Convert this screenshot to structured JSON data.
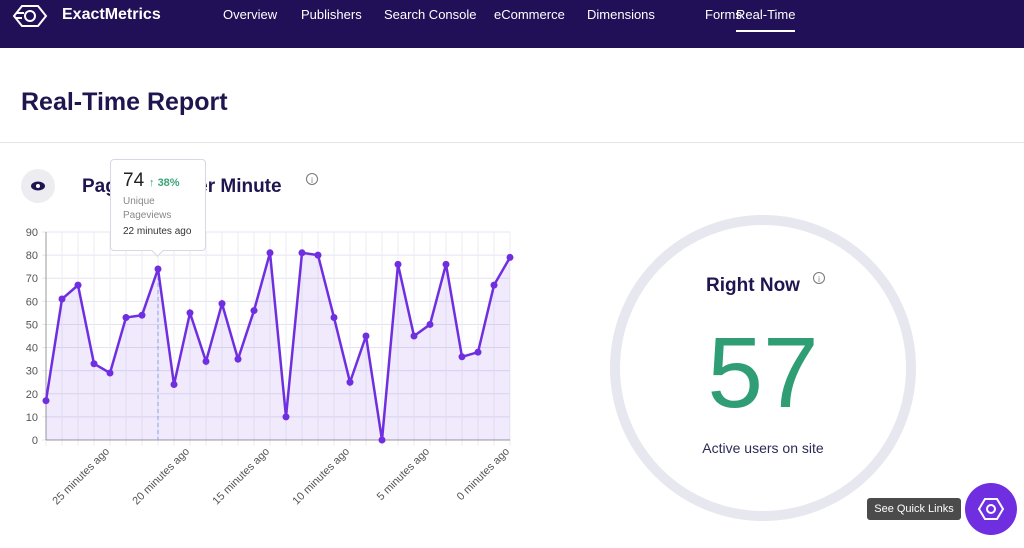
{
  "header": {
    "logo": "ExactMetrics",
    "nav": [
      "Overview",
      "Publishers",
      "Search Console",
      "eCommerce",
      "Dimensions",
      "Forms",
      "Real-Time"
    ]
  },
  "page_title": "Real-Time Report",
  "chart_data": {
    "type": "line",
    "title": "Pageviews Per Minute",
    "categories": [
      null,
      null,
      null,
      null,
      "25 minutes ago",
      null,
      null,
      null,
      null,
      "20 minutes ago",
      null,
      null,
      null,
      null,
      "15 minutes ago",
      null,
      null,
      null,
      null,
      "10 minutes ago",
      null,
      null,
      null,
      null,
      "5 minutes ago",
      null,
      null,
      null,
      null,
      "0 minutes ago"
    ],
    "values": [
      17,
      61,
      67,
      33,
      29,
      53,
      54,
      74,
      24,
      55,
      34,
      59,
      35,
      56,
      81,
      10,
      81,
      80,
      53,
      25,
      45,
      0,
      76,
      45,
      50,
      76,
      36,
      38,
      67,
      79
    ],
    "color": "#6f2fe0",
    "ylim": [
      0,
      90
    ],
    "yticks": [
      0,
      10,
      20,
      30,
      40,
      50,
      60,
      70,
      80,
      90
    ],
    "grid": true
  },
  "tooltip": {
    "change": "38%",
    "label": "Unique Pageviews",
    "time": "22 minutes ago"
  },
  "right_now": {
    "title": "Right Now",
    "value": 57,
    "caption": "Active users on site"
  },
  "quick_links": "See Quick Links"
}
